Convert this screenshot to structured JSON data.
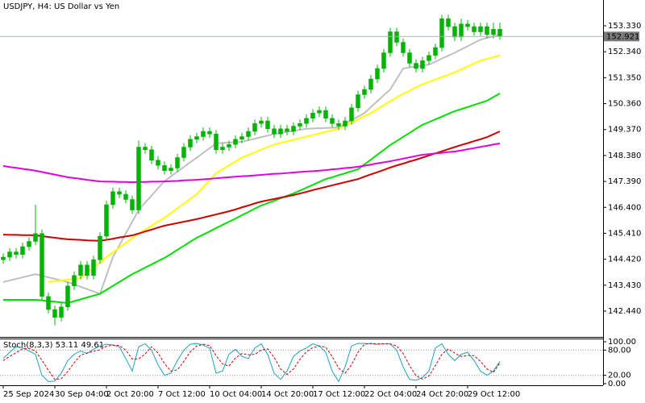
{
  "chart_data": [
    {
      "type": "candlestick",
      "title": "USDJPY, H4:  US Dollar vs Yen",
      "categories": [
        "25 Sep 2024",
        null,
        null,
        null,
        null,
        null,
        null,
        null,
        "30 Sep 04:00",
        null,
        null,
        null,
        null,
        null,
        null,
        null,
        "2 Oct 20:00",
        null,
        null,
        null,
        null,
        null,
        null,
        null,
        "7 Oct 12:00",
        null,
        null,
        null,
        null,
        null,
        null,
        null,
        "10 Oct 04:00",
        null,
        null,
        null,
        null,
        null,
        null,
        null,
        "14 Oct 20:00",
        null,
        null,
        null,
        null,
        null,
        null,
        null,
        "17 Oct 12:00",
        null,
        null,
        null,
        null,
        null,
        null,
        null,
        "22 Oct 04:00",
        null,
        null,
        null,
        null,
        null,
        null,
        null,
        "24 Oct 20:00",
        null,
        null,
        null,
        null,
        null,
        null,
        null,
        "29 Oct 12:00",
        null,
        null,
        null,
        null,
        null
      ],
      "open": [
        144.4,
        144.5,
        144.7,
        144.6,
        144.9,
        145.1,
        145.4,
        143.0,
        142.5,
        142.2,
        142.6,
        143.4,
        143.8,
        144.2,
        143.8,
        144.4,
        145.3,
        146.5,
        147.0,
        146.9,
        146.7,
        146.3,
        148.7,
        148.6,
        148.2,
        148.0,
        147.8,
        147.9,
        148.3,
        148.7,
        149.0,
        149.1,
        149.3,
        149.2,
        148.6,
        148.7,
        148.8,
        149.0,
        149.1,
        149.3,
        149.6,
        149.7,
        149.4,
        149.2,
        149.4,
        149.3,
        149.5,
        149.6,
        149.8,
        150.0,
        150.1,
        149.8,
        149.6,
        149.5,
        149.7,
        150.2,
        150.7,
        150.9,
        151.3,
        151.7,
        152.3,
        153.1,
        152.7,
        152.3,
        151.9,
        151.7,
        152.0,
        152.2,
        152.5,
        153.6,
        153.3,
        152.9,
        153.4,
        153.3,
        153.1,
        153.3,
        153.0,
        153.2
      ],
      "high": [
        144.65,
        144.85,
        144.85,
        145.05,
        145.25,
        146.5,
        145.55,
        143.15,
        142.65,
        142.75,
        143.55,
        143.95,
        144.35,
        144.35,
        144.55,
        145.45,
        146.65,
        147.15,
        147.15,
        147.05,
        146.85,
        148.95,
        148.85,
        148.75,
        148.35,
        148.15,
        148.05,
        148.45,
        148.85,
        149.15,
        149.25,
        149.45,
        149.45,
        149.35,
        148.85,
        148.95,
        149.15,
        149.25,
        149.45,
        149.75,
        149.85,
        149.85,
        149.55,
        149.55,
        149.55,
        149.65,
        149.75,
        149.95,
        150.15,
        150.25,
        150.25,
        149.95,
        149.75,
        149.85,
        150.35,
        150.85,
        151.05,
        151.45,
        151.85,
        152.45,
        153.25,
        153.25,
        152.85,
        152.45,
        152.05,
        152.15,
        152.35,
        152.65,
        153.75,
        153.75,
        153.45,
        153.6,
        153.55,
        153.45,
        153.45,
        153.45,
        153.45,
        153.45
      ],
      "low": [
        144.25,
        144.35,
        144.45,
        144.45,
        144.75,
        144.95,
        142.85,
        142.35,
        141.9,
        142.05,
        142.45,
        143.25,
        143.65,
        143.65,
        143.65,
        144.25,
        145.15,
        146.35,
        146.75,
        146.55,
        146.15,
        146.15,
        148.45,
        148.05,
        147.85,
        147.65,
        147.65,
        147.75,
        148.15,
        148.55,
        148.85,
        148.95,
        149.05,
        148.45,
        148.45,
        148.55,
        148.65,
        148.85,
        148.95,
        149.15,
        149.45,
        149.25,
        149.05,
        149.05,
        149.15,
        149.15,
        149.35,
        149.45,
        149.65,
        149.85,
        149.65,
        149.45,
        149.35,
        149.35,
        149.55,
        150.05,
        150.55,
        150.75,
        151.15,
        151.55,
        152.15,
        152.55,
        152.15,
        151.75,
        151.55,
        151.55,
        151.85,
        152.05,
        152.35,
        153.15,
        152.75,
        152.75,
        153.15,
        152.95,
        152.95,
        152.85,
        152.85,
        152.8
      ],
      "close": [
        144.5,
        144.7,
        144.6,
        144.9,
        145.1,
        145.4,
        143.0,
        142.5,
        142.2,
        142.6,
        143.4,
        143.8,
        144.2,
        143.8,
        144.4,
        145.3,
        146.5,
        147.0,
        146.9,
        146.7,
        146.3,
        148.7,
        148.6,
        148.2,
        148.0,
        147.8,
        147.9,
        148.3,
        148.7,
        149.0,
        149.1,
        149.3,
        149.2,
        148.6,
        148.7,
        148.8,
        149.0,
        149.1,
        149.3,
        149.6,
        149.7,
        149.4,
        149.2,
        149.4,
        149.3,
        149.5,
        149.6,
        149.8,
        150.0,
        150.1,
        149.8,
        149.6,
        149.5,
        149.7,
        150.2,
        150.7,
        150.9,
        151.3,
        151.7,
        152.3,
        153.1,
        152.7,
        152.3,
        151.9,
        151.7,
        152.0,
        152.2,
        152.5,
        153.6,
        153.3,
        152.9,
        153.4,
        153.3,
        153.1,
        153.3,
        153.0,
        153.2,
        152.92
      ],
      "color": "#00b400",
      "series": [
        {
          "color": "#c0c0c0",
          "values": [
            143.55,
            143.61,
            143.67,
            143.73,
            143.79,
            143.85,
            143.79,
            143.73,
            143.67,
            143.61,
            143.55,
            143.46,
            143.37,
            143.28,
            143.19,
            143.1,
            143.8,
            144.5,
            144.95,
            145.4,
            145.85,
            146.3,
            146.58,
            146.85,
            147.13,
            147.4,
            147.58,
            147.76,
            147.94,
            148.12,
            148.3,
            148.48,
            148.66,
            148.84,
            148.86,
            148.87,
            148.89,
            148.9,
            148.96,
            149.02,
            149.08,
            149.14,
            149.2,
            149.24,
            149.28,
            149.32,
            149.36,
            149.4,
            149.41,
            149.42,
            149.43,
            149.44,
            149.45,
            149.59,
            149.73,
            149.86,
            150.0,
            150.23,
            150.45,
            150.68,
            150.9,
            151.3,
            151.7,
            151.74,
            151.78,
            151.81,
            151.85,
            151.96,
            152.08,
            152.19,
            152.3,
            152.43,
            152.55,
            152.68,
            152.8,
            152.87,
            152.93,
            153.0
          ]
        },
        {
          "color": "#ffff00",
          "values": [
            null,
            null,
            null,
            null,
            null,
            null,
            null,
            143.55,
            143.58,
            143.61,
            143.64,
            143.67,
            143.7,
            143.9,
            144.1,
            144.3,
            144.5,
            144.68,
            144.86,
            145.04,
            145.22,
            145.4,
            145.55,
            145.7,
            145.85,
            146.0,
            146.18,
            146.36,
            146.54,
            146.72,
            146.9,
            147.17,
            147.43,
            147.7,
            147.85,
            148.0,
            148.15,
            148.3,
            148.4,
            148.5,
            148.6,
            148.7,
            148.8,
            148.86,
            148.92,
            148.98,
            149.04,
            149.1,
            149.16,
            149.22,
            149.28,
            149.34,
            149.4,
            149.52,
            149.64,
            149.76,
            149.88,
            150.0,
            150.15,
            150.3,
            150.45,
            150.6,
            150.73,
            150.85,
            150.98,
            151.1,
            151.19,
            151.28,
            151.37,
            151.46,
            151.55,
            151.66,
            151.78,
            151.89,
            152.0,
            152.07,
            152.13,
            152.2
          ]
        },
        {
          "color": "#00e000",
          "values": [
            142.87,
            142.87,
            142.87,
            142.87,
            142.87,
            142.87,
            142.85,
            142.82,
            142.8,
            142.77,
            142.75,
            142.82,
            142.89,
            142.96,
            143.03,
            143.1,
            143.25,
            143.4,
            143.55,
            143.7,
            143.85,
            143.97,
            144.1,
            144.22,
            144.35,
            144.47,
            144.62,
            144.78,
            144.93,
            145.09,
            145.24,
            145.36,
            145.48,
            145.61,
            145.73,
            145.85,
            145.97,
            146.1,
            146.22,
            146.35,
            146.47,
            146.56,
            146.65,
            146.75,
            146.84,
            146.93,
            147.04,
            147.15,
            147.26,
            147.37,
            147.48,
            147.55,
            147.63,
            147.7,
            147.78,
            147.85,
            148.04,
            148.22,
            148.41,
            148.59,
            148.78,
            148.93,
            149.09,
            149.24,
            149.4,
            149.55,
            149.65,
            149.76,
            149.86,
            149.97,
            150.07,
            150.15,
            150.23,
            150.31,
            150.39,
            150.47,
            150.61,
            150.75
          ]
        },
        {
          "color": "#d00000",
          "values": [
            145.36,
            145.35,
            145.35,
            145.34,
            145.34,
            145.33,
            145.3,
            145.27,
            145.24,
            145.21,
            145.18,
            145.17,
            145.16,
            145.14,
            145.13,
            145.12,
            145.16,
            145.2,
            145.25,
            145.29,
            145.33,
            145.4,
            145.48,
            145.55,
            145.63,
            145.7,
            145.75,
            145.8,
            145.85,
            145.9,
            145.95,
            146.01,
            146.07,
            146.13,
            146.19,
            146.25,
            146.32,
            146.4,
            146.47,
            146.55,
            146.62,
            146.67,
            146.72,
            146.77,
            146.82,
            146.87,
            146.93,
            146.99,
            147.06,
            147.12,
            147.18,
            147.24,
            147.3,
            147.36,
            147.42,
            147.48,
            147.57,
            147.66,
            147.74,
            147.83,
            147.92,
            148.0,
            148.07,
            148.15,
            148.22,
            148.3,
            148.38,
            148.46,
            148.54,
            148.62,
            148.7,
            148.78,
            148.85,
            148.93,
            149.0,
            149.08,
            149.19,
            149.3
          ]
        },
        {
          "color": "#e000e0",
          "values": [
            147.98,
            147.94,
            147.91,
            147.87,
            147.84,
            147.8,
            147.75,
            147.7,
            147.65,
            147.6,
            147.55,
            147.52,
            147.49,
            147.45,
            147.42,
            147.39,
            147.38,
            147.38,
            147.37,
            147.37,
            147.36,
            147.37,
            147.37,
            147.38,
            147.38,
            147.39,
            147.4,
            147.41,
            147.43,
            147.44,
            147.45,
            147.47,
            147.49,
            147.51,
            147.53,
            147.55,
            147.57,
            147.59,
            147.6,
            147.62,
            147.64,
            147.66,
            147.68,
            147.69,
            147.71,
            147.73,
            147.75,
            147.77,
            147.78,
            147.8,
            147.82,
            147.85,
            147.87,
            147.9,
            147.92,
            147.95,
            147.99,
            148.03,
            148.08,
            148.12,
            148.16,
            148.21,
            148.26,
            148.31,
            148.36,
            148.41,
            148.43,
            148.46,
            148.48,
            148.51,
            148.53,
            148.57,
            148.62,
            148.66,
            148.71,
            148.75,
            148.8,
            148.84
          ]
        }
      ],
      "current_price": {
        "value": 152.921,
        "label": "152.921"
      },
      "ylim": [
        141.455,
        154.315
      ],
      "yticks": [
        {
          "value": 153.33,
          "label": "153.330"
        },
        {
          "value": 152.34,
          "label": "152.340"
        },
        {
          "value": 151.35,
          "label": "151.350"
        },
        {
          "value": 150.36,
          "label": "150.360"
        },
        {
          "value": 149.37,
          "label": "149.370"
        },
        {
          "value": 148.38,
          "label": "148.380"
        },
        {
          "value": 147.39,
          "label": "147.390"
        },
        {
          "value": 146.4,
          "label": "146.400"
        },
        {
          "value": 145.41,
          "label": "145.410"
        },
        {
          "value": 144.42,
          "label": "144.420"
        },
        {
          "value": 143.43,
          "label": "143.430"
        },
        {
          "value": 142.44,
          "label": "142.440"
        }
      ],
      "grid": false
    },
    {
      "type": "line",
      "title": "Stoch(8,3,3) 53.11 49.61",
      "series": [
        {
          "color": "#20a0c0",
          "values": [
            60,
            75,
            88,
            85,
            78,
            70,
            20,
            5,
            6,
            25,
            55,
            70,
            78,
            72,
            82,
            90,
            94,
            92,
            88,
            60,
            30,
            88,
            95,
            80,
            45,
            20,
            25,
            55,
            80,
            94,
            96,
            92,
            85,
            25,
            30,
            70,
            82,
            65,
            60,
            85,
            95,
            70,
            25,
            10,
            30,
            65,
            78,
            85,
            95,
            90,
            75,
            30,
            5,
            40,
            90,
            96,
            96,
            95,
            94,
            95,
            95,
            80,
            40,
            10,
            8,
            15,
            30,
            85,
            95,
            70,
            55,
            70,
            75,
            55,
            30,
            20,
            30,
            53.11
          ]
        },
        {
          "color": "#d00000",
          "dashed": true,
          "values": [
            55,
            65,
            74,
            83,
            84,
            78,
            56,
            32,
            10,
            12,
            29,
            50,
            68,
            73,
            77,
            81,
            89,
            92,
            91,
            80,
            59,
            59,
            71,
            88,
            73,
            48,
            30,
            33,
            53,
            76,
            90,
            94,
            91,
            67,
            47,
            42,
            61,
            72,
            69,
            70,
            80,
            83,
            63,
            35,
            22,
            35,
            58,
            76,
            86,
            90,
            87,
            65,
            37,
            25,
            45,
            75,
            94,
            96,
            95,
            95,
            95,
            90,
            72,
            43,
            19,
            11,
            18,
            43,
            70,
            83,
            73,
            65,
            67,
            67,
            53,
            35,
            27,
            49.61
          ]
        }
      ],
      "ylim": [
        0,
        100
      ],
      "yticks": [
        {
          "value": 100,
          "label": "100.00"
        },
        {
          "value": 80,
          "label": "80.00"
        },
        {
          "value": 20,
          "label": "20.00"
        },
        {
          "value": 0,
          "label": "0.00"
        }
      ],
      "grid": true
    }
  ]
}
